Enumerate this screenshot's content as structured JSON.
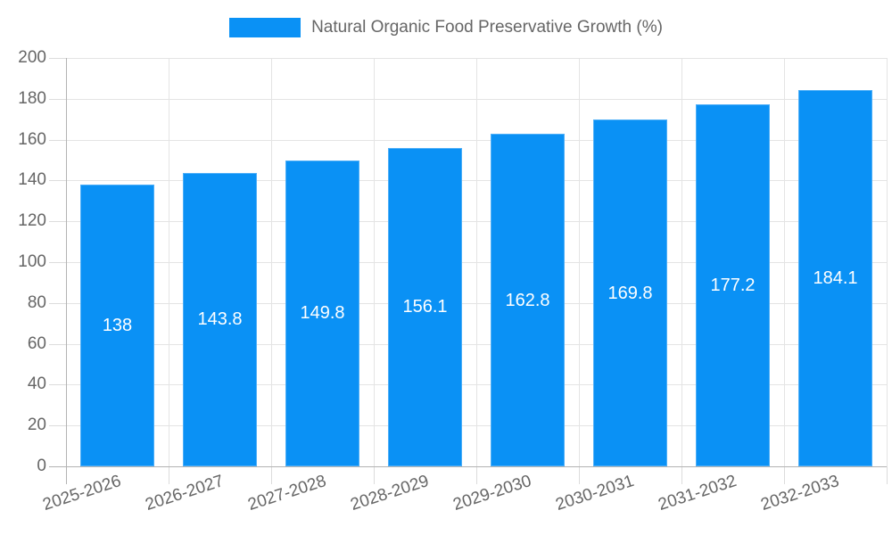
{
  "legend": {
    "label": "Natural Organic Food Preservative Growth (%)"
  },
  "chart_data": {
    "type": "bar",
    "title": "Natural Organic Food Preservative Growth (%)",
    "xlabel": "",
    "ylabel": "",
    "categories": [
      "2025-2026",
      "2026-2027",
      "2027-2028",
      "2028-2029",
      "2029-2030",
      "2030-2031",
      "2031-2032",
      "2032-2033"
    ],
    "values": [
      138,
      143.8,
      149.8,
      156.1,
      162.8,
      169.8,
      177.2,
      184.1
    ],
    "value_labels": [
      "138",
      "143.8",
      "149.8",
      "156.1",
      "162.8",
      "169.8",
      "177.2",
      "184.1"
    ],
    "ylim": [
      0,
      200
    ],
    "y_ticks": [
      0,
      20,
      40,
      60,
      80,
      100,
      120,
      140,
      160,
      180,
      200
    ],
    "grid": true,
    "legend_position": "top-center",
    "x_label_rotation_deg": -18,
    "colors": {
      "bar": "#0a91f5",
      "axis": "#b3b3b3",
      "grid": "#e4e4e4",
      "tick": "#dcdcdc",
      "text": "#666666",
      "value_label": "#ffffff",
      "background": "#ffffff"
    }
  }
}
